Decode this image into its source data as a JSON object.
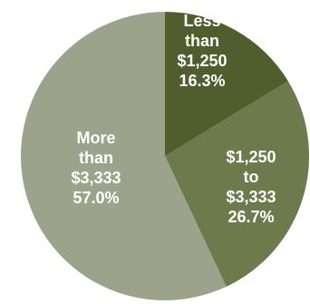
{
  "chart_data": {
    "type": "pie",
    "title": "",
    "slices": [
      {
        "label_lines": [
          "Less",
          "than",
          "$1,250",
          "16.3%"
        ],
        "value": 16.3,
        "color": "#4f5e2c"
      },
      {
        "label_lines": [
          "$1,250",
          "to",
          "$3,333",
          "26.7%"
        ],
        "value": 26.7,
        "color": "#6c7a4c"
      },
      {
        "label_lines": [
          "More",
          "than",
          "$3,333",
          "57.0%"
        ],
        "value": 57.0,
        "color": "#9da28a"
      }
    ],
    "start_angle_deg": 0,
    "direction": "clockwise",
    "label_color": "#ffffff",
    "background": "#ffffff"
  }
}
